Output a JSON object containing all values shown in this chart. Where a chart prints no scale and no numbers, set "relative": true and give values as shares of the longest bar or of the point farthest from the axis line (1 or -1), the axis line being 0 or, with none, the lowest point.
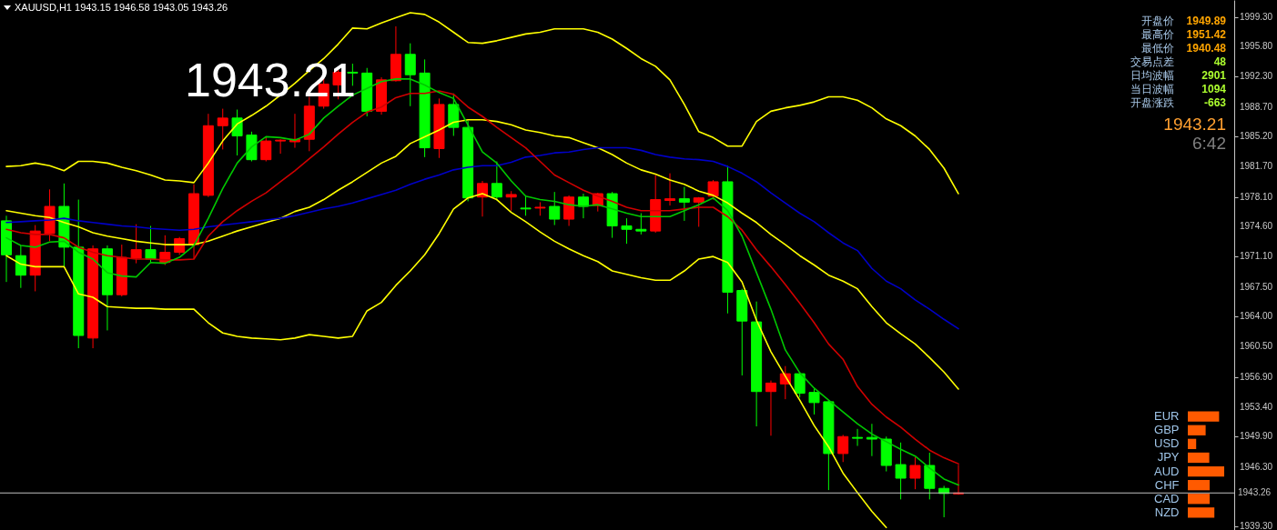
{
  "chart_data": [
    {
      "type": "candlestick",
      "title": "XAUUSD,H1 1943.15 1946.58 1943.05 1943.26",
      "annotations": [
        "1943.21"
      ],
      "categories": [
        null,
        null,
        null,
        null,
        null,
        null,
        null,
        null,
        null,
        null,
        null,
        null,
        null,
        null,
        null,
        null,
        null,
        null,
        null,
        null,
        null,
        null,
        null,
        null,
        null,
        null,
        null,
        null,
        null,
        null,
        null,
        null,
        null,
        null,
        null,
        null,
        null,
        null,
        null,
        null,
        null,
        null,
        null,
        null,
        null,
        null,
        null,
        null,
        null,
        null,
        null,
        null,
        null,
        null,
        null,
        null,
        null,
        null,
        null,
        null,
        null,
        null,
        null,
        null,
        null,
        null,
        null
      ],
      "ohlc": [
        [
          1975.3,
          1975.9,
          1968.1,
          1971.3
        ],
        [
          1971.2,
          1972.4,
          1967.4,
          1968.9
        ],
        [
          1968.9,
          1974.8,
          1967.0,
          1974.1
        ],
        [
          1973.8,
          1979.0,
          1972.9,
          1977.0
        ],
        [
          1977.0,
          1979.7,
          1969.9,
          1972.2
        ],
        [
          1972.2,
          1977.8,
          1960.3,
          1961.8
        ],
        [
          1961.5,
          1972.4,
          1960.3,
          1972.0
        ],
        [
          1972.0,
          1972.4,
          1962.4,
          1966.6
        ],
        [
          1966.6,
          1972.5,
          1966.4,
          1971.0
        ],
        [
          1970.9,
          1974.9,
          1970.3,
          1971.9
        ],
        [
          1971.9,
          1974.7,
          1970.3,
          1970.8
        ],
        [
          1970.4,
          1973.6,
          1970.1,
          1971.6
        ],
        [
          1971.6,
          1973.4,
          1971.3,
          1973.2
        ],
        [
          1972.5,
          1979.6,
          1970.8,
          1978.5
        ],
        [
          1978.3,
          1987.9,
          1978.1,
          1986.5
        ],
        [
          1986.5,
          1988.5,
          1983.7,
          1987.4
        ],
        [
          1987.4,
          1988.4,
          1983.0,
          1985.3
        ],
        [
          1985.4,
          1985.8,
          1982.3,
          1982.5
        ],
        [
          1982.5,
          1985.2,
          1982.3,
          1984.7
        ],
        [
          1984.7,
          1984.9,
          1983.2,
          1984.8
        ],
        [
          1984.6,
          1987.9,
          1983.9,
          1984.9
        ],
        [
          1984.9,
          1989.9,
          1983.5,
          1988.8
        ],
        [
          1988.8,
          1992.2,
          1988.5,
          1991.4
        ],
        [
          1991.3,
          1993.3,
          1989.6,
          1992.8
        ],
        [
          1992.8,
          1993.8,
          1991.2,
          1992.7
        ],
        [
          1992.7,
          1993.3,
          1987.6,
          1988.2
        ],
        [
          1988.2,
          1992.2,
          1987.8,
          1991.9
        ],
        [
          1991.8,
          1998.2,
          1991.7,
          1994.9
        ],
        [
          1994.9,
          1996.2,
          1988.8,
          1992.5
        ],
        [
          1992.7,
          1994.3,
          1982.8,
          1983.9
        ],
        [
          1983.8,
          1989.7,
          1982.7,
          1989.0
        ],
        [
          1989.0,
          1990.3,
          1985.3,
          1986.3
        ],
        [
          1986.3,
          1987.1,
          1977.6,
          1978.0
        ],
        [
          1978.1,
          1980.0,
          1975.8,
          1979.7
        ],
        [
          1979.7,
          1982.3,
          1977.7,
          1978.1
        ],
        [
          1978.1,
          1978.8,
          1976.5,
          1978.4
        ],
        [
          1976.8,
          1978.3,
          1975.9,
          1976.7
        ],
        [
          1976.8,
          1977.5,
          1975.9,
          1976.9
        ],
        [
          1977.0,
          1978.7,
          1974.8,
          1975.5
        ],
        [
          1975.5,
          1978.3,
          1974.7,
          1978.1
        ],
        [
          1978.1,
          1978.5,
          1975.6,
          1977.0
        ],
        [
          1977.1,
          1978.6,
          1976.4,
          1978.5
        ],
        [
          1978.5,
          1978.7,
          1973.3,
          1974.7
        ],
        [
          1974.7,
          1975.6,
          1972.6,
          1974.3
        ],
        [
          1974.3,
          1976.2,
          1973.7,
          1974.1
        ],
        [
          1974.1,
          1980.7,
          1973.9,
          1977.8
        ],
        [
          1977.7,
          1980.9,
          1977.1,
          1977.9
        ],
        [
          1977.9,
          1979.3,
          1975.3,
          1977.5
        ],
        [
          1977.5,
          1978.1,
          1974.6,
          1978.0
        ],
        [
          1978.2,
          1980.1,
          1977.8,
          1979.9
        ],
        [
          1979.9,
          1981.8,
          1964.4,
          1966.9
        ],
        [
          1967.1,
          1967.3,
          1957.1,
          1963.5
        ],
        [
          1963.4,
          1965.8,
          1951.1,
          1955.2
        ],
        [
          1955.2,
          1956.5,
          1950.0,
          1956.2
        ],
        [
          1956.1,
          1958.2,
          1954.3,
          1957.3
        ],
        [
          1957.3,
          1957.5,
          1954.5,
          1955.0
        ],
        [
          1955.1,
          1955.5,
          1952.5,
          1953.9
        ],
        [
          1954.0,
          1954.2,
          1943.6,
          1947.9
        ],
        [
          1947.9,
          1950.1,
          1946.9,
          1949.9
        ],
        [
          1949.8,
          1950.8,
          1948.8,
          1949.7
        ],
        [
          1949.8,
          1951.4,
          1947.6,
          1949.6
        ],
        [
          1949.6,
          1949.9,
          1945.8,
          1946.5
        ],
        [
          1946.6,
          1949.2,
          1942.5,
          1945.0
        ],
        [
          1945.0,
          1947.5,
          1943.7,
          1946.5
        ],
        [
          1946.5,
          1948.0,
          1942.5,
          1943.8
        ],
        [
          1943.8,
          1944.1,
          1940.4,
          1943.2
        ],
        [
          1943.15,
          1946.58,
          1943.05,
          1943.26
        ]
      ],
      "colors": [
        "#00ff00",
        "#00ff00",
        "#ff0000",
        "#ff0000",
        "#00ff00",
        "#00ff00",
        "#ff0000",
        "#00ff00",
        "#ff0000",
        "#ff0000",
        "#00ff00",
        "#ff0000",
        "#ff0000",
        "#ff0000",
        "#ff0000",
        "#ff0000",
        "#00ff00",
        "#00ff00",
        "#ff0000",
        "#ff0000",
        "#ff0000",
        "#ff0000",
        "#ff0000",
        "#ff0000",
        "#00ff00",
        "#00ff00",
        "#ff0000",
        "#ff0000",
        "#00ff00",
        "#00ff00",
        "#ff0000",
        "#00ff00",
        "#00ff00",
        "#ff0000",
        "#00ff00",
        "#ff0000",
        "#00ff00",
        "#ff0000",
        "#00ff00",
        "#ff0000",
        "#00ff00",
        "#ff0000",
        "#00ff00",
        "#00ff00",
        "#00ff00",
        "#ff0000",
        "#ff0000",
        "#00ff00",
        "#ff0000",
        "#ff0000",
        "#00ff00",
        "#00ff00",
        "#00ff00",
        "#ff0000",
        "#ff0000",
        "#00ff00",
        "#00ff00",
        "#00ff00",
        "#ff0000",
        "#00ff00",
        "#00ff00",
        "#00ff00",
        "#00ff00",
        "#ff0000",
        "#00ff00",
        "#00ff00",
        "#ff0000"
      ],
      "series": [
        {
          "type": "line",
          "color": "#ffff00",
          "values": [
            1981.7,
            1981.8,
            1982.1,
            1981.8,
            1981.2,
            1982.3,
            1982.3,
            1982.1,
            1981.6,
            1981.2,
            1980.7,
            1980.1,
            1980.0,
            1979.8,
            1982.1,
            1984.7,
            1986.7,
            1987.7,
            1988.8,
            1990.1,
            1991.5,
            1993.0,
            1994.4,
            1996.1,
            1998.0,
            1997.9,
            1998.6,
            1999.2,
            1999.8,
            1999.6,
            1998.7,
            1997.5,
            1996.3,
            1996.2,
            1996.5,
            1996.9,
            1997.3,
            1997.5,
            1997.9,
            1997.9,
            1997.9,
            1997.5,
            1996.7,
            1995.6,
            1994.4,
            1993.5,
            1991.9,
            1989.0,
            1985.8,
            1985.1,
            1984.1,
            1984.1,
            1987.0,
            1988.2,
            1988.6,
            1988.9,
            1989.3,
            1989.9,
            1989.9,
            1989.5,
            1988.6,
            1987.3,
            1986.5,
            1985.3,
            1983.7,
            1981.5,
            1978.5
          ]
        },
        {
          "type": "line",
          "color": "#ffff00",
          "values": [
            1976.5,
            1976.2,
            1975.9,
            1975.7,
            1975.1,
            1974.6,
            1973.9,
            1973.5,
            1973.2,
            1972.9,
            1972.7,
            1972.5,
            1972.5,
            1972.5,
            1972.9,
            1973.5,
            1974.1,
            1974.6,
            1975.1,
            1975.6,
            1976.4,
            1976.9,
            1977.8,
            1978.9,
            1979.9,
            1981.0,
            1982.1,
            1982.9,
            1984.4,
            1985.2,
            1986.0,
            1986.9,
            1987.2,
            1987.2,
            1987.0,
            1986.6,
            1986.0,
            1985.7,
            1985.3,
            1985.1,
            1984.5,
            1983.9,
            1983.1,
            1982.1,
            1981.3,
            1980.8,
            1980.1,
            1979.6,
            1978.8,
            1978.3,
            1977.4,
            1976.2,
            1975.1,
            1973.7,
            1972.5,
            1971.2,
            1970.1,
            1968.9,
            1968.2,
            1967.3,
            1965.2,
            1963.3,
            1962.0,
            1960.8,
            1959.2,
            1957.5,
            1955.5
          ]
        },
        {
          "type": "line",
          "color": "#ffff00",
          "values": [
            1971.2,
            1970.2,
            1969.9,
            1969.9,
            1969.9,
            1966.7,
            1966.3,
            1965.2,
            1965.1,
            1965.0,
            1965.0,
            1964.9,
            1964.9,
            1964.9,
            1963.3,
            1962.1,
            1961.7,
            1961.5,
            1961.4,
            1961.3,
            1961.5,
            1961.9,
            1961.7,
            1961.5,
            1961.7,
            1964.7,
            1965.7,
            1967.7,
            1969.4,
            1971.3,
            1973.8,
            1976.7,
            1978.0,
            1978.5,
            1977.8,
            1976.3,
            1975.2,
            1974.0,
            1972.9,
            1972.0,
            1971.2,
            1970.5,
            1969.4,
            1969.0,
            1968.6,
            1968.3,
            1968.3,
            1969.4,
            1970.8,
            1971.1,
            1970.4,
            1968.1,
            1963.6,
            1959.9,
            1957.0,
            1954.2,
            1951.2,
            1948.7,
            1945.6,
            1943.3,
            1941.1,
            1939.2,
            null,
            null,
            null,
            null,
            null
          ]
        },
        {
          "type": "line",
          "color": "#0000c8",
          "values": [
            1975.1,
            1975.2,
            1975.3,
            1975.4,
            1975.6,
            1975.3,
            1975.1,
            1974.9,
            1974.7,
            1974.6,
            1974.4,
            1974.3,
            1974.2,
            1974.3,
            1974.6,
            1974.8,
            1975.0,
            1975.2,
            1975.4,
            1975.6,
            1975.9,
            1976.3,
            1976.7,
            1977.0,
            1977.4,
            1977.9,
            1978.4,
            1978.9,
            1979.6,
            1980.2,
            1980.7,
            1981.3,
            1981.6,
            1981.8,
            1981.8,
            1982.2,
            1982.8,
            1983.0,
            1983.3,
            1983.4,
            1983.7,
            1983.9,
            1983.9,
            1983.9,
            1983.6,
            1983.1,
            1982.8,
            1982.6,
            1982.5,
            1982.3,
            1981.7,
            1980.9,
            1979.9,
            1978.6,
            1977.4,
            1976.2,
            1975.2,
            1973.9,
            1972.7,
            1971.8,
            1969.7,
            1968.2,
            1967.3,
            1966.0,
            1964.9,
            1963.7,
            1962.6
          ]
        },
        {
          "type": "line",
          "color": "#d00000",
          "values": [
            1974.3,
            1973.9,
            1973.7,
            1973.7,
            1973.3,
            1972.2,
            1971.6,
            1971.2,
            1971.0,
            1970.8,
            1970.8,
            1970.7,
            1970.7,
            1970.8,
            1973.5,
            1975.2,
            1976.5,
            1977.6,
            1978.6,
            1979.9,
            1981.2,
            1982.6,
            1984.0,
            1985.5,
            1986.9,
            1988.1,
            1988.7,
            1989.8,
            1990.3,
            1990.3,
            1990.6,
            1990.2,
            1988.7,
            1987.6,
            1986.3,
            1985.1,
            1983.9,
            1982.3,
            1980.7,
            1979.8,
            1978.9,
            1978.2,
            1977.6,
            1976.9,
            1976.5,
            1976.5,
            1976.5,
            1976.7,
            1976.9,
            1976.9,
            1975.8,
            1974.2,
            1971.9,
            1969.9,
            1967.8,
            1965.6,
            1963.3,
            1960.8,
            1959.0,
            1955.8,
            1953.7,
            1952.2,
            1951.0,
            1949.6,
            1948.3,
            1947.4,
            1946.7
          ]
        },
        {
          "type": "line",
          "color": "#00c800",
          "values": [
            1973.3,
            1972.4,
            1972.2,
            1972.8,
            1972.9,
            1971.6,
            1970.8,
            1969.2,
            1968.8,
            1968.7,
            1970.4,
            1970.3,
            1971.0,
            1972.4,
            1975.6,
            1979.1,
            1982.1,
            1984.0,
            1985.2,
            1985.1,
            1984.8,
            1985.5,
            1987.4,
            1988.8,
            1990.1,
            1990.9,
            1991.7,
            1992.0,
            1992.0,
            1991.3,
            1990.4,
            1989.7,
            1986.6,
            1983.4,
            1982.1,
            1980.0,
            1978.2,
            1977.8,
            1977.6,
            1977.2,
            1977.0,
            1977.2,
            1976.7,
            1976.2,
            1975.8,
            1975.8,
            1975.8,
            1976.5,
            1977.2,
            1978.0,
            1976.5,
            1973.5,
            1969.2,
            1964.9,
            1960.1,
            1957.4,
            1955.6,
            1954.2,
            1952.8,
            1951.4,
            1950.2,
            1949.3,
            1948.4,
            1947.6,
            1946.2,
            1944.9,
            1944.2
          ]
        }
      ],
      "ylim": [
        1938.9,
        2001.3
      ],
      "yticks": [
        {
          "value": 1999.3,
          "label": "1999.30"
        },
        {
          "value": 1995.8,
          "label": "1995.80"
        },
        {
          "value": 1992.3,
          "label": "1992.30"
        },
        {
          "value": 1988.7,
          "label": "1988.70"
        },
        {
          "value": 1985.2,
          "label": "1985.20"
        },
        {
          "value": 1981.7,
          "label": "1981.70"
        },
        {
          "value": 1978.1,
          "label": "1978.10"
        },
        {
          "value": 1974.6,
          "label": "1974.60"
        },
        {
          "value": 1971.1,
          "label": "1971.10"
        },
        {
          "value": 1967.5,
          "label": "1967.50"
        },
        {
          "value": 1964.0,
          "label": "1964.00"
        },
        {
          "value": 1960.5,
          "label": "1960.50"
        },
        {
          "value": 1956.9,
          "label": "1956.90"
        },
        {
          "value": 1953.4,
          "label": "1953.40"
        },
        {
          "value": 1949.9,
          "label": "1949.90"
        },
        {
          "value": 1946.3,
          "label": "1946.30"
        },
        {
          "value": 1939.3,
          "label": "1939.30"
        }
      ],
      "ref_lines": [
        {
          "axis": "y",
          "value": 1943.26,
          "label": "1943.26",
          "color": "#c0c0c0"
        }
      ],
      "tick_labels": "y"
    },
    {
      "type": "other",
      "annotations": [
        "开盘价",
        "1949.89",
        "最高价",
        "1951.42",
        "最低价",
        "1940.48",
        "交易点差",
        "48",
        "日均波幅",
        "2901",
        "当日波幅",
        "1094",
        "开盘涨跌",
        "-663",
        "1943.21",
        "6:42"
      ]
    },
    {
      "type": "bar",
      "orientation": "horizontal",
      "relative": true,
      "categories": [
        "EUR",
        "GBP",
        "USD",
        "JPY",
        "AUD",
        "CHF",
        "CAD",
        "NZD"
      ],
      "values": [
        0.86,
        0.49,
        0.23,
        0.59,
        1,
        0.6,
        0.6,
        0.73
      ],
      "colors": [
        "#ff5a00",
        "#ff5a00",
        "#ff5a00",
        "#ff5a00",
        "#ff5a00",
        "#ff5a00",
        "#ff5a00",
        "#ff5a00"
      ]
    }
  ]
}
